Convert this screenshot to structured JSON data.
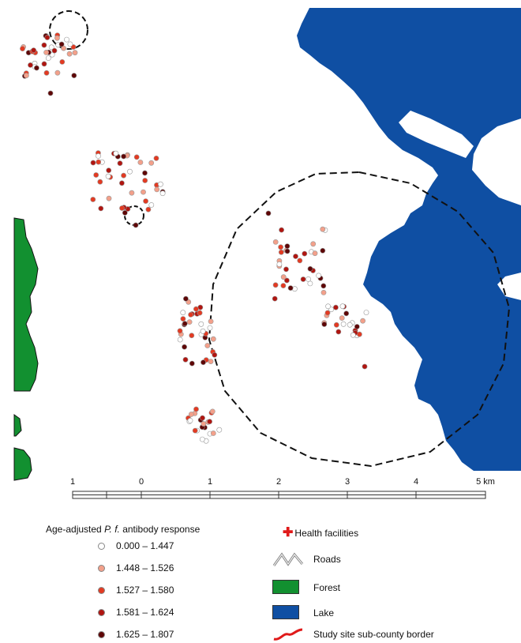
{
  "map": {
    "colors": {
      "lake": "#0f4fa3",
      "forest": "#129030",
      "border": "#111111",
      "class1": "#ffffff",
      "class2": "#f3a08a",
      "class3": "#e33a22",
      "class4": "#b01510",
      "class5": "#5e0606"
    }
  },
  "scale": {
    "labels": [
      "1",
      "0",
      "1",
      "2",
      "3",
      "4",
      "5 km"
    ]
  },
  "legend": {
    "title_prefix": "Age-adjusted ",
    "title_italic": "P. f.",
    "title_suffix": " antibody response",
    "classes": [
      {
        "label": "0.000 – 1.447",
        "color": "#ffffff"
      },
      {
        "label": "1.448 – 1.526",
        "color": "#f3a08a"
      },
      {
        "label": "1.527 – 1.580",
        "color": "#e33a22"
      },
      {
        "label": "1.581 – 1.624",
        "color": "#b01510"
      },
      {
        "label": "1.625 – 1.807",
        "color": "#5e0606"
      }
    ],
    "health_facilities": "Health facilities",
    "roads": "Roads",
    "forest": "Forest",
    "lake": "Lake",
    "border": "Study site sub-county border"
  }
}
